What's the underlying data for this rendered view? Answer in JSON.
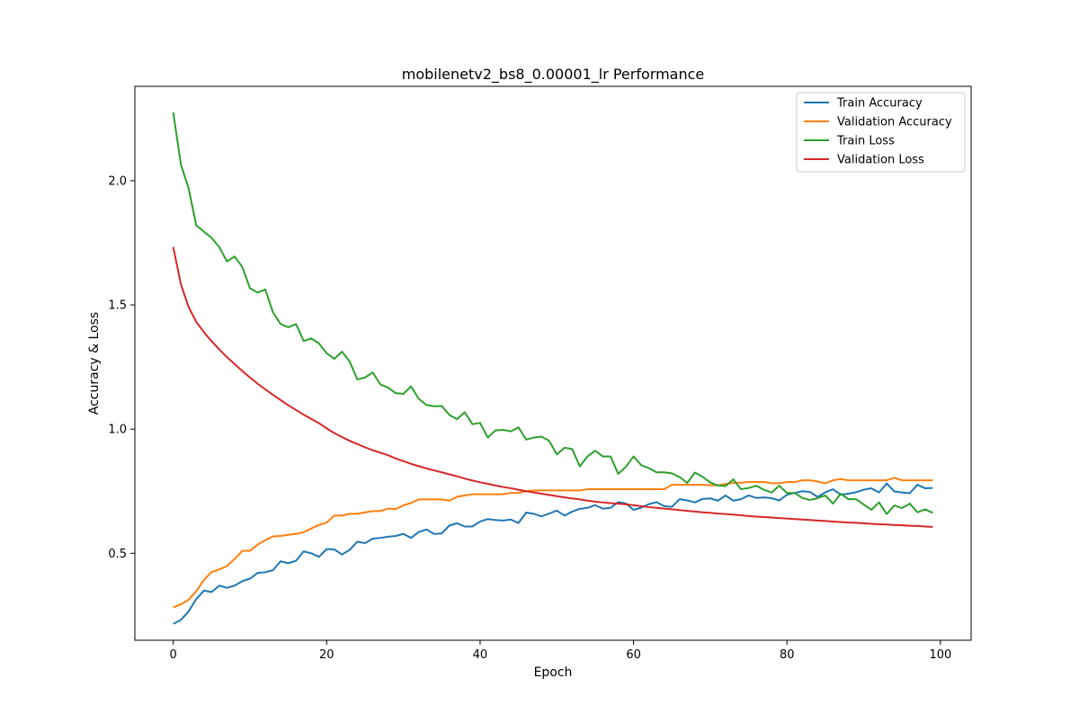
{
  "chart_data": {
    "type": "line",
    "title": "mobilenetv2_bs8_0.00001_lr Performance",
    "xlabel": "Epoch",
    "ylabel": "Accuracy & Loss",
    "xlim": [
      -5,
      104
    ],
    "ylim": [
      0.15,
      2.38
    ],
    "x_ticks": [
      0,
      20,
      40,
      60,
      80,
      100
    ],
    "y_ticks": [
      0.5,
      1.0,
      1.5,
      2.0
    ],
    "x_tick_labels": [
      "0",
      "20",
      "40",
      "60",
      "80",
      "100"
    ],
    "y_tick_labels": [
      "0.5",
      "1.0",
      "1.5",
      "2.0"
    ],
    "grid": false,
    "legend_position": "top-right",
    "x": [
      0,
      1,
      2,
      3,
      4,
      5,
      6,
      7,
      8,
      9,
      10,
      11,
      12,
      13,
      14,
      15,
      16,
      17,
      18,
      19,
      20,
      21,
      22,
      23,
      24,
      25,
      26,
      27,
      28,
      29,
      30,
      31,
      32,
      33,
      34,
      35,
      36,
      37,
      38,
      39,
      40,
      41,
      42,
      43,
      44,
      45,
      46,
      47,
      48,
      49,
      50,
      51,
      52,
      53,
      54,
      55,
      56,
      57,
      58,
      59,
      60,
      61,
      62,
      63,
      64,
      65,
      66,
      67,
      68,
      69,
      70,
      71,
      72,
      73,
      74,
      75,
      76,
      77,
      78,
      79,
      80,
      81,
      82,
      83,
      84,
      85,
      86,
      87,
      88,
      89,
      90,
      91,
      92,
      93,
      94,
      95,
      96,
      97,
      98,
      99
    ],
    "series": [
      {
        "name": "Train Accuracy",
        "color": "#1f77b4",
        "values": [
          0.216,
          0.232,
          0.266,
          0.316,
          0.35,
          0.344,
          0.37,
          0.361,
          0.37,
          0.388,
          0.398,
          0.421,
          0.424,
          0.432,
          0.468,
          0.46,
          0.47,
          0.508,
          0.5,
          0.486,
          0.517,
          0.516,
          0.495,
          0.514,
          0.547,
          0.541,
          0.559,
          0.562,
          0.567,
          0.57,
          0.578,
          0.562,
          0.586,
          0.596,
          0.578,
          0.58,
          0.612,
          0.621,
          0.608,
          0.608,
          0.628,
          0.638,
          0.634,
          0.632,
          0.636,
          0.622,
          0.664,
          0.659,
          0.649,
          0.66,
          0.672,
          0.652,
          0.668,
          0.679,
          0.683,
          0.694,
          0.68,
          0.683,
          0.706,
          0.701,
          0.675,
          0.684,
          0.698,
          0.706,
          0.69,
          0.687,
          0.718,
          0.713,
          0.705,
          0.719,
          0.721,
          0.712,
          0.733,
          0.712,
          0.718,
          0.733,
          0.723,
          0.725,
          0.722,
          0.713,
          0.736,
          0.743,
          0.75,
          0.747,
          0.727,
          0.746,
          0.758,
          0.736,
          0.74,
          0.746,
          0.756,
          0.762,
          0.745,
          0.781,
          0.749,
          0.745,
          0.742,
          0.776,
          0.762,
          0.763
        ]
      },
      {
        "name": "Validation Accuracy",
        "color": "#ff7f0e",
        "values": [
          0.282,
          0.295,
          0.313,
          0.347,
          0.393,
          0.425,
          0.435,
          0.449,
          0.477,
          0.51,
          0.51,
          0.535,
          0.553,
          0.568,
          0.57,
          0.575,
          0.578,
          0.585,
          0.6,
          0.614,
          0.624,
          0.652,
          0.652,
          0.659,
          0.659,
          0.665,
          0.67,
          0.67,
          0.68,
          0.678,
          0.693,
          0.703,
          0.717,
          0.717,
          0.717,
          0.717,
          0.712,
          0.728,
          0.733,
          0.738,
          0.738,
          0.738,
          0.738,
          0.738,
          0.743,
          0.743,
          0.75,
          0.753,
          0.753,
          0.753,
          0.753,
          0.753,
          0.753,
          0.753,
          0.758,
          0.758,
          0.758,
          0.758,
          0.758,
          0.758,
          0.758,
          0.758,
          0.758,
          0.758,
          0.758,
          0.776,
          0.776,
          0.776,
          0.776,
          0.776,
          0.774,
          0.774,
          0.779,
          0.784,
          0.784,
          0.787,
          0.787,
          0.787,
          0.782,
          0.782,
          0.787,
          0.787,
          0.794,
          0.794,
          0.789,
          0.782,
          0.794,
          0.799,
          0.794,
          0.794,
          0.794,
          0.794,
          0.794,
          0.794,
          0.804,
          0.794,
          0.794,
          0.794,
          0.794,
          0.794
        ]
      },
      {
        "name": "Train Loss",
        "color": "#2ca02c",
        "values": [
          2.275,
          2.065,
          1.97,
          1.82,
          1.795,
          1.77,
          1.733,
          1.675,
          1.695,
          1.653,
          1.567,
          1.55,
          1.562,
          1.47,
          1.423,
          1.41,
          1.423,
          1.355,
          1.365,
          1.345,
          1.305,
          1.283,
          1.312,
          1.272,
          1.2,
          1.208,
          1.228,
          1.18,
          1.167,
          1.145,
          1.142,
          1.172,
          1.122,
          1.097,
          1.092,
          1.093,
          1.057,
          1.04,
          1.068,
          1.02,
          1.025,
          0.966,
          0.995,
          0.997,
          0.991,
          1.007,
          0.958,
          0.966,
          0.97,
          0.953,
          0.898,
          0.925,
          0.92,
          0.85,
          0.89,
          0.913,
          0.89,
          0.89,
          0.82,
          0.848,
          0.89,
          0.855,
          0.843,
          0.826,
          0.826,
          0.822,
          0.807,
          0.783,
          0.825,
          0.808,
          0.785,
          0.773,
          0.771,
          0.798,
          0.758,
          0.763,
          0.772,
          0.756,
          0.745,
          0.772,
          0.743,
          0.743,
          0.723,
          0.715,
          0.722,
          0.733,
          0.7,
          0.74,
          0.718,
          0.718,
          0.697,
          0.675,
          0.705,
          0.658,
          0.693,
          0.682,
          0.7,
          0.665,
          0.677,
          0.663
        ]
      },
      {
        "name": "Validation Loss",
        "color": "#d62728",
        "values": [
          1.733,
          1.583,
          1.492,
          1.432,
          1.39,
          1.354,
          1.321,
          1.29,
          1.262,
          1.234,
          1.208,
          1.183,
          1.16,
          1.138,
          1.117,
          1.096,
          1.077,
          1.058,
          1.041,
          1.024,
          1.003,
          0.984,
          0.968,
          0.953,
          0.94,
          0.927,
          0.915,
          0.905,
          0.895,
          0.882,
          0.871,
          0.86,
          0.851,
          0.842,
          0.834,
          0.826,
          0.818,
          0.81,
          0.801,
          0.793,
          0.786,
          0.78,
          0.773,
          0.767,
          0.762,
          0.756,
          0.75,
          0.745,
          0.74,
          0.735,
          0.73,
          0.725,
          0.721,
          0.717,
          0.712,
          0.708,
          0.705,
          0.702,
          0.7,
          0.697,
          0.694,
          0.69,
          0.686,
          0.683,
          0.68,
          0.677,
          0.674,
          0.671,
          0.668,
          0.665,
          0.663,
          0.66,
          0.658,
          0.656,
          0.653,
          0.65,
          0.648,
          0.646,
          0.644,
          0.642,
          0.64,
          0.638,
          0.636,
          0.634,
          0.632,
          0.63,
          0.628,
          0.626,
          0.624,
          0.623,
          0.621,
          0.619,
          0.617,
          0.616,
          0.614,
          0.613,
          0.611,
          0.61,
          0.608,
          0.606
        ]
      }
    ]
  }
}
